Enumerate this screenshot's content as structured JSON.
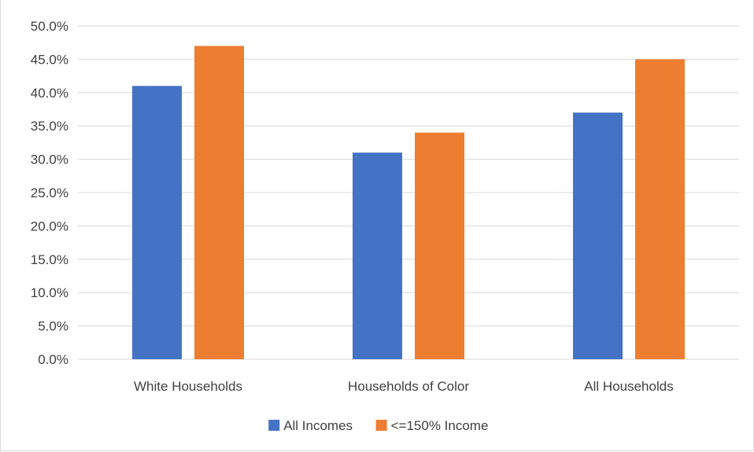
{
  "chart_data": {
    "type": "bar",
    "title": "",
    "xlabel": "",
    "ylabel": "",
    "categories": [
      "White Households",
      "Households of Color",
      "All Households"
    ],
    "series": [
      {
        "name": "All Incomes",
        "values": [
          41.0,
          31.0,
          37.0
        ],
        "color": "#4472c4"
      },
      {
        "name": "<=150% Income",
        "values": [
          47.0,
          34.0,
          45.0
        ],
        "color": "#ed7d31"
      }
    ],
    "ylim": [
      0,
      50
    ],
    "ytick_step": 5,
    "ytick_labels": [
      "0.0%",
      "5.0%",
      "10.0%",
      "15.0%",
      "20.0%",
      "25.0%",
      "30.0%",
      "35.0%",
      "40.0%",
      "45.0%",
      "50.0%"
    ],
    "grid": true,
    "grid_color": "#d9d9d9",
    "legend_position": "bottom"
  }
}
